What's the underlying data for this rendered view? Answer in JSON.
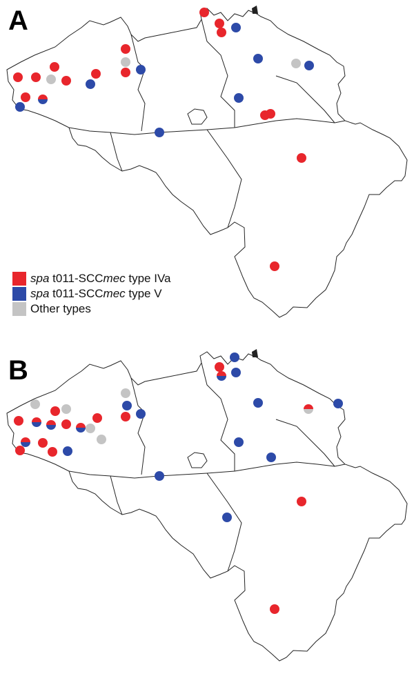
{
  "panels": [
    {
      "letter": "A"
    },
    {
      "letter": "B"
    }
  ],
  "legend": [
    {
      "italic_prefix": "spa",
      "text_1": " t011-SCC",
      "italic_mid": "mec",
      "text_2": " type IVa",
      "color": "#e8262c"
    },
    {
      "italic_prefix": "spa",
      "text_1": " t011-SCC",
      "italic_mid": "mec",
      "text_2": " type V",
      "color": "#2d4aa8"
    },
    {
      "italic_prefix": "",
      "text_1": "Other types",
      "italic_mid": "",
      "text_2": "",
      "color": "#c4c4c4"
    }
  ],
  "colors": {
    "type_iva": "#e8262c",
    "type_v": "#2d4aa8",
    "other": "#c4c4c4",
    "border": "#222222"
  }
}
